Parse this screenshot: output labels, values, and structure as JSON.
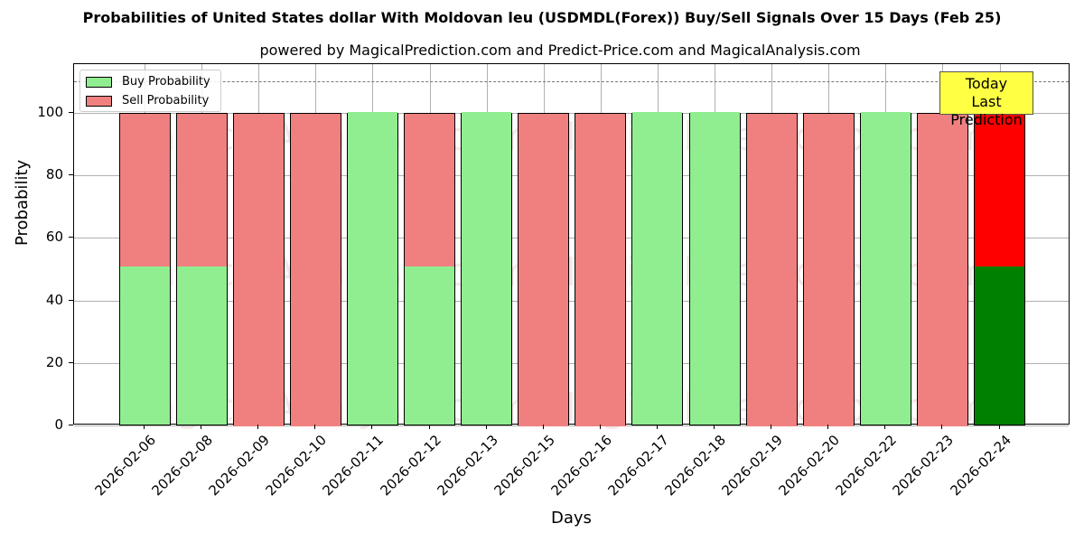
{
  "title": "Probabilities of United States dollar With Moldovan leu (USDMDL(Forex)) Buy/Sell Signals Over 15 Days (Feb 25)",
  "subtitle": "powered by MagicalPrediction.com and Predict-Price.com and MagicalAnalysis.com",
  "legend": {
    "buy": "Buy Probability",
    "sell": "Sell Probability"
  },
  "annotation": {
    "line1": "Today",
    "line2": "Last Prediction"
  },
  "watermarks": [
    "MagicalAnalysis.com",
    "MagicalPrediction.com"
  ],
  "yticks": [
    "0",
    "20",
    "40",
    "60",
    "80",
    "100"
  ],
  "colors": {
    "buy": "#90ee90",
    "sell": "#f08080",
    "today_buy": "#008000",
    "today_sell": "#ff0000",
    "annotation_bg": "#ffff44"
  },
  "chart_data": {
    "type": "bar",
    "stacked": true,
    "title": "Probabilities of United States dollar With Moldovan leu (USDMDL(Forex)) Buy/Sell Signals Over 15 Days (Feb 25)",
    "subtitle": "powered by MagicalPrediction.com and Predict-Price.com and MagicalAnalysis.com",
    "xlabel": "Days",
    "ylabel": "Probability",
    "ylim": [
      0,
      115
    ],
    "yticks": [
      0,
      20,
      40,
      60,
      80,
      100
    ],
    "grid": true,
    "legend_position": "upper left",
    "reference_line": {
      "y": 110,
      "style": "dashed"
    },
    "categories": [
      "2026-02-06",
      "2026-02-08",
      "2026-02-09",
      "2026-02-10",
      "2026-02-11",
      "2026-02-12",
      "2026-02-13",
      "2026-02-15",
      "2026-02-16",
      "2026-02-17",
      "2026-02-18",
      "2026-02-19",
      "2026-02-20",
      "2026-02-22",
      "2026-02-23",
      "2026-02-24"
    ],
    "series": [
      {
        "name": "Buy Probability",
        "values": [
          50.7,
          50.7,
          0,
          0,
          100,
          50.7,
          100,
          0,
          0,
          100,
          100,
          0,
          0,
          100,
          0,
          50.7
        ]
      },
      {
        "name": "Sell Probability",
        "values": [
          49.3,
          49.3,
          100,
          100,
          0,
          49.3,
          0,
          100,
          100,
          0,
          0,
          100,
          100,
          0,
          100,
          49.3
        ]
      }
    ],
    "annotations": [
      {
        "text": "Today\nLast Prediction",
        "x": "2026-02-24"
      }
    ]
  }
}
